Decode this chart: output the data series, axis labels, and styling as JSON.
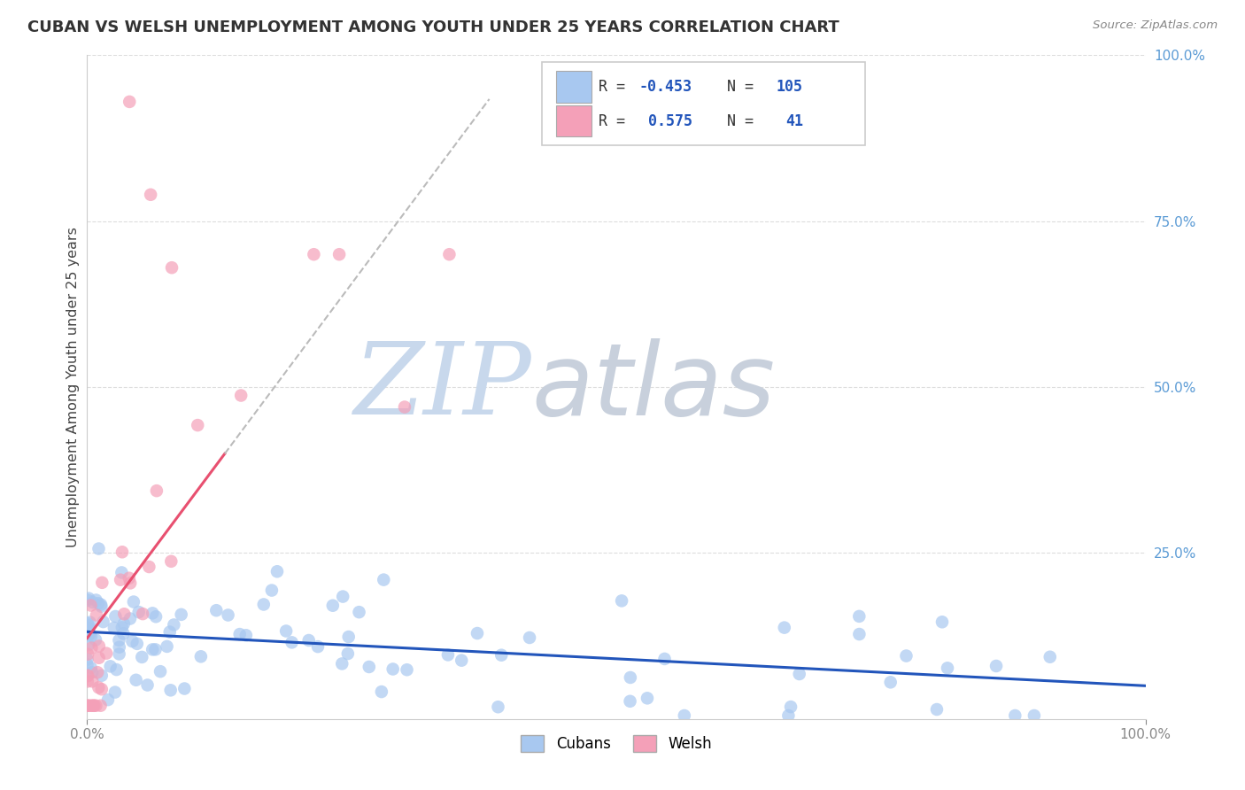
{
  "title": "CUBAN VS WELSH UNEMPLOYMENT AMONG YOUTH UNDER 25 YEARS CORRELATION CHART",
  "source": "Source: ZipAtlas.com",
  "ylabel": "Unemployment Among Youth under 25 years",
  "xlim": [
    0.0,
    1.0
  ],
  "ylim": [
    0.0,
    1.0
  ],
  "cubans_R": -0.453,
  "cubans_N": 105,
  "welsh_R": 0.575,
  "welsh_N": 41,
  "cubans_color": "#A8C8F0",
  "welsh_color": "#F4A0B8",
  "cubans_line_color": "#2255BB",
  "welsh_line_color": "#E85070",
  "dash_line_color": "#BBBBBB",
  "background_color": "#FFFFFF",
  "watermark_color": "#D8E8F5",
  "title_color": "#333333",
  "right_tick_color": "#5B9BD5",
  "axis_tick_color": "#888888",
  "grid_color": "#DDDDDD",
  "legend_border_color": "#CCCCCC",
  "legend_text_color": "#333333",
  "legend_value_color": "#2255BB",
  "legend_n_color": "#2255BB"
}
